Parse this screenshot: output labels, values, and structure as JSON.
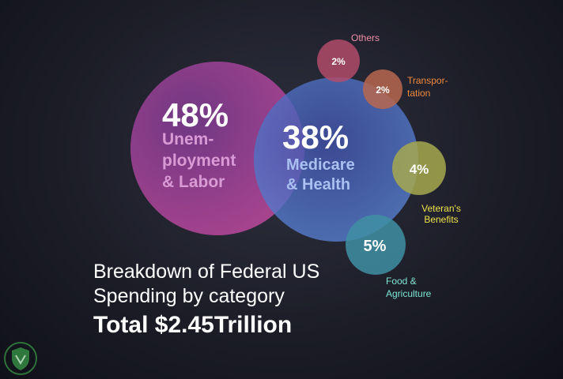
{
  "chart_data": {
    "type": "bubble",
    "unit": "%",
    "categories": [
      {
        "key": "unemployment",
        "value": 48,
        "label_lines": [
          "Unem-",
          "ployment",
          "& Labor"
        ],
        "color": "#b34a9a",
        "label_color": "#d99ad6"
      },
      {
        "key": "medicare",
        "value": 38,
        "label_lines": [
          "Medicare",
          "& Health"
        ],
        "color": "#4d6fc9",
        "label_color": "#a9c0f0"
      },
      {
        "key": "others",
        "value": 2,
        "label_lines": [
          "Others"
        ],
        "color": "#b04b6a",
        "label_color": "#f08ea8"
      },
      {
        "key": "transportation",
        "value": 2,
        "label_lines": [
          "Transpor-",
          "tation"
        ],
        "color": "#b8674f",
        "label_color": "#f08a3c"
      },
      {
        "key": "veterans",
        "value": 4,
        "label_lines": [
          "Veteran's",
          "Benefits"
        ],
        "color": "#a6a84d",
        "label_color": "#f0e24a"
      },
      {
        "key": "food",
        "value": 5,
        "label_lines": [
          "Food &",
          "Agriculture"
        ],
        "color": "#3f8fa3",
        "label_color": "#7fe6d6"
      }
    ]
  },
  "caption": {
    "line1": "Breakdown of Federal US",
    "line2": "Spending by category",
    "total": "Total $2.45Trillion"
  },
  "logo": {
    "icon": "shield-logo-icon",
    "color": "#3a9a4a"
  }
}
